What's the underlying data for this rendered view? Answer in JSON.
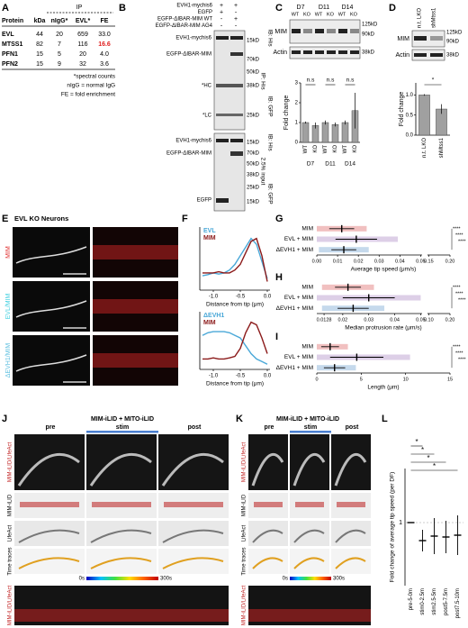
{
  "panels": {
    "A": {
      "label": "A",
      "ip": "IP",
      "columns": [
        "Protein",
        "kDa",
        "nIgG*",
        "EVL*",
        "FE"
      ],
      "rows": [
        [
          "EVL",
          "44",
          "20",
          "659",
          "33.0"
        ],
        [
          "MTSS1",
          "82",
          "7",
          "116",
          "16.6"
        ],
        [
          "PFN1",
          "15",
          "5",
          "20",
          "4.0"
        ],
        [
          "PFN2",
          "15",
          "9",
          "32",
          "3.6"
        ]
      ],
      "highlight_color": "#e02020",
      "notes": [
        "*spectral counts",
        "nIgG = normal IgG",
        "FE = fold enrichment"
      ]
    },
    "B": {
      "label": "B",
      "conditions": [
        {
          "name": "EVH1-mychis6",
          "signs": [
            "+",
            "+"
          ]
        },
        {
          "name": "EGFP",
          "signs": [
            "+",
            "-"
          ]
        },
        {
          "name": "EGFP-ΔIBAR-MIM WT",
          "signs": [
            "-",
            "+"
          ]
        },
        {
          "name": "EGFP-ΔIBAR-MIM AG4",
          "signs": [
            "-",
            "-"
          ]
        }
      ],
      "top_bands": [
        "EVH1-mychis6",
        "EGFP-ΔIBAR-MIM",
        "*HC",
        "*LC"
      ],
      "top_markers": [
        "15kD",
        "70kD",
        "50kD",
        "38kD",
        "25kD"
      ],
      "top_blots": [
        "IB: His",
        "IP: His",
        "IB: GFP"
      ],
      "bottom_bands": [
        "EVH1-mychis6",
        "EGFP-ΔIBAR-MIM",
        "EGFP"
      ],
      "bottom_markers": [
        "15kD",
        "70kD",
        "50kD",
        "38kD",
        "25kD",
        "15kD"
      ],
      "bottom_blots": [
        "IB: His",
        "2.5% input",
        "IB: GFP"
      ]
    },
    "C": {
      "label": "C",
      "days": [
        "D7",
        "D11",
        "D14"
      ],
      "genotypes": [
        "WT",
        "KO",
        "WT",
        "KO",
        "WT",
        "KO"
      ],
      "bands": [
        "MIM",
        "Actin"
      ],
      "markers": [
        "125kD",
        "90kD",
        "38kD"
      ]
    },
    "D": {
      "label": "D",
      "lanes": [
        "n.t. LKO",
        "shMtss1"
      ],
      "bands": [
        "MIM",
        "Actin"
      ],
      "markers": [
        "125kD",
        "90kD",
        "38kD"
      ]
    },
    "E": {
      "label": "E",
      "title": "EVL KO Neurons",
      "rows": [
        "MIM",
        "EVL/MIM",
        "ΔEVH1/MIM"
      ]
    },
    "F": {
      "label": "F"
    },
    "G": {
      "label": "G"
    },
    "H": {
      "label": "H"
    },
    "I": {
      "label": "I"
    },
    "J": {
      "label": "J",
      "title": "MIM-iLID + MITO-iLID",
      "phases": [
        "pre",
        "stim",
        "post"
      ],
      "rows": [
        "MIM-iLID/LifeAct",
        "MIM-iLID",
        "LifeAct",
        "Time traces"
      ],
      "scale": [
        "0s",
        "300s"
      ],
      "kymo": "MIM-iLID/LifeAct"
    },
    "K": {
      "label": "K",
      "title": "MIM-iLID + MITO-iLID",
      "phases": [
        "pre",
        "stim",
        "post"
      ],
      "rows": [
        "MIM-iLID/LifeAct",
        "MIM-iLID",
        "LifeAct",
        "Time traces"
      ],
      "scale": [
        "0s",
        "300s"
      ],
      "kymo": "MIM-iLID/LifeAct"
    },
    "L": {
      "label": "L"
    }
  },
  "chart_data": [
    {
      "type": "bar",
      "ylabel": "Fold change",
      "categories": [
        "WT",
        "KO",
        "WT",
        "KO",
        "WT",
        "KO"
      ],
      "groups": [
        "D7",
        "D11",
        "D14"
      ],
      "values": [
        1,
        0.85,
        1,
        0.9,
        1,
        1.6
      ],
      "errors": [
        0.05,
        0.15,
        0.1,
        0.1,
        0.1,
        0.9
      ],
      "ylim": [
        0,
        3
      ],
      "yticks": [
        0,
        1,
        2,
        3
      ],
      "annotations": [
        "n.s",
        "n.s",
        "n.s"
      ],
      "color": "#a0a0a0"
    },
    {
      "type": "bar",
      "ylabel": "Fold change",
      "categories": [
        "n.t. LKO",
        "shMtss1"
      ],
      "values": [
        1,
        0.65
      ],
      "errors": [
        0.02,
        0.12
      ],
      "ylim": [
        0,
        1.3
      ],
      "yticks": [
        {
          "value": 0,
          "label": "0.0"
        },
        {
          "value": 0.5,
          "label": "0.5"
        },
        {
          "value": 1,
          "label": "1.0"
        }
      ],
      "annotations": [
        "*"
      ],
      "color": "#a0a0a0"
    },
    {
      "type": "line",
      "ylabel": "Tip fluor. int. (a.u.)",
      "xlabel": "Distance from tip (μm)",
      "x": [
        -1.2,
        -1.1,
        -1.0,
        -0.9,
        -0.8,
        -0.7,
        -0.6,
        -0.5,
        -0.4,
        -0.3,
        -0.2,
        -0.1,
        0.0
      ],
      "series": [
        {
          "name": "EVL",
          "color": "#4aa8d8",
          "values": [
            0.25,
            0.27,
            0.3,
            0.28,
            0.3,
            0.35,
            0.45,
            0.6,
            0.75,
            0.9,
            0.8,
            0.5,
            0.2
          ]
        },
        {
          "name": "MIM",
          "color": "#8b1a1a",
          "values": [
            0.3,
            0.3,
            0.3,
            0.32,
            0.3,
            0.3,
            0.35,
            0.45,
            0.65,
            0.85,
            0.9,
            0.6,
            0.15
          ]
        }
      ],
      "xlim": [
        -1.25,
        0.05
      ],
      "xticks": [
        {
          "value": -1,
          "label": "-1.0"
        },
        {
          "value": -0.5,
          "label": "-0.5"
        },
        {
          "value": 0,
          "label": "0.0"
        }
      ],
      "ylim": [
        0,
        1.1
      ]
    },
    {
      "type": "line",
      "ylabel": "Tip fluor. int. (a.u.)",
      "xlabel": "Distance from tip (μm)",
      "x": [
        -1.2,
        -1.1,
        -1.0,
        -0.9,
        -0.8,
        -0.7,
        -0.6,
        -0.5,
        -0.4,
        -0.3,
        -0.2,
        -0.1,
        0.0
      ],
      "series": [
        {
          "name": "ΔEVH1",
          "color": "#4aa8d8",
          "values": [
            0.65,
            0.7,
            0.72,
            0.72,
            0.72,
            0.7,
            0.65,
            0.6,
            0.45,
            0.3,
            0.2,
            0.15,
            0.1
          ]
        },
        {
          "name": "MIM",
          "color": "#8b1a1a",
          "values": [
            0.2,
            0.2,
            0.22,
            0.2,
            0.2,
            0.22,
            0.25,
            0.4,
            0.7,
            0.9,
            0.85,
            0.6,
            0.3
          ]
        }
      ],
      "xlim": [
        -1.25,
        0.05
      ],
      "xticks": [
        {
          "value": -1,
          "label": "-1.0"
        },
        {
          "value": -0.5,
          "label": "-0.5"
        },
        {
          "value": 0,
          "label": "0.0"
        }
      ],
      "ylim": [
        0,
        1.1
      ]
    },
    {
      "type": "strip",
      "xlabel": "Average tip speed (μm/s)",
      "categories": [
        "MIM",
        "EVL + MIM",
        "ΔEVH1 + MIM"
      ],
      "values": [
        0.012,
        0.019,
        0.013
      ],
      "errors": [
        0.006,
        0.01,
        0.006
      ],
      "colors": [
        "#d03030",
        "#9060b0",
        "#4080c0"
      ],
      "xlim": [
        0,
        0.2
      ],
      "axis_break": [
        0.05,
        0.15
      ],
      "xticks": [
        {
          "value": 0,
          "label": "0.00"
        },
        {
          "value": 0.01,
          "label": "0.01"
        },
        {
          "value": 0.02,
          "label": "0.02"
        },
        {
          "value": 0.03,
          "label": "0.03"
        },
        {
          "value": 0.04,
          "label": "0.04"
        },
        {
          "value": 0.05,
          "label": "0.05"
        },
        {
          "value": 0.15,
          "label": "0.15"
        },
        {
          "value": 0.2,
          "label": "0.20"
        }
      ],
      "annotations": [
        "****",
        "****",
        "****"
      ]
    },
    {
      "type": "strip",
      "xlabel": "Median protrusion rate (μm/s)",
      "categories": [
        "MIM",
        "EVL + MIM",
        "ΔEVH1 + MIM"
      ],
      "values": [
        0.022,
        0.03,
        0.024
      ],
      "errors": [
        0.005,
        0.01,
        0.006
      ],
      "colors": [
        "#d03030",
        "#9060b0",
        "#4080c0"
      ],
      "xlim": [
        0.01,
        0.2
      ],
      "axis_break": [
        0.05,
        0.1
      ],
      "xticks": [
        0.0128,
        0.02,
        0.03,
        0.04,
        0.05,
        {
          "value": 0.1,
          "label": "0.10"
        },
        {
          "value": 0.2,
          "label": "0.20"
        }
      ],
      "annotations": [
        "****",
        "****",
        "****"
      ]
    },
    {
      "type": "strip",
      "xlabel": "Length (μm)",
      "categories": [
        "MIM",
        "EVL + MIM",
        "ΔEVH1 + MIM"
      ],
      "values": [
        1.5,
        4.5,
        2
      ],
      "errors": [
        1,
        3,
        1.2
      ],
      "colors": [
        "#d03030",
        "#9060b0",
        "#4080c0"
      ],
      "xlim": [
        0,
        15
      ],
      "xticks": [
        0,
        5,
        10,
        15
      ],
      "annotations": [
        "****",
        "****",
        "****"
      ]
    },
    {
      "type": "errorbar",
      "ylabel": "Fold change of average tip speed (per DF)",
      "categories": [
        "pre-5-0m",
        "stim0-2.5m",
        "stim2.5-5m",
        "post5-7.5m",
        "post7.5-10m"
      ],
      "values": [
        1,
        0.8,
        0.85,
        0.84,
        0.86
      ],
      "errors": [
        0,
        0.12,
        0.2,
        0.18,
        0.22
      ],
      "ylim": [
        0.3,
        1.6
      ],
      "yticks": [
        1
      ],
      "annotations": [
        "*",
        "*",
        "*",
        "*"
      ],
      "color": "#5aa0d0"
    }
  ]
}
